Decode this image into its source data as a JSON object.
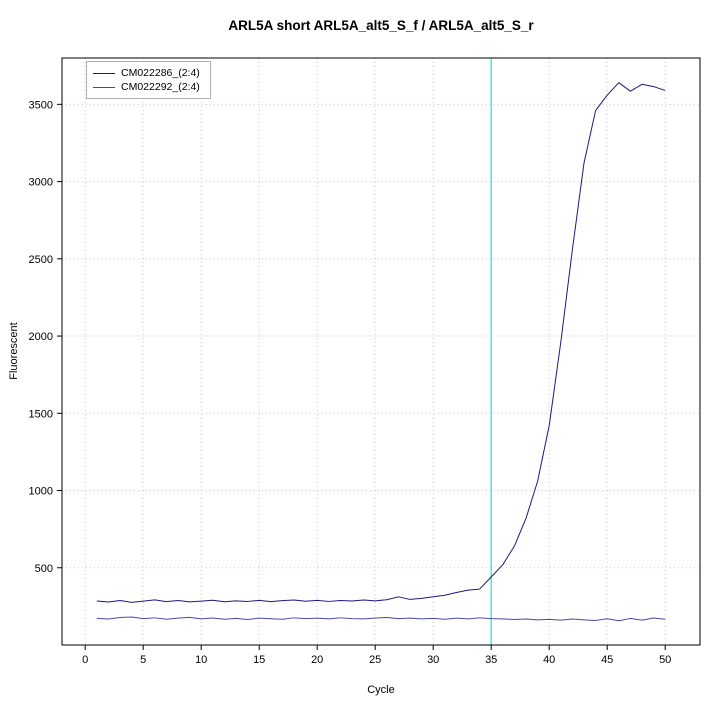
{
  "chart_data": {
    "type": "line",
    "title": "ARL5A short ARL5A_alt5_S_f / ARL5A_alt5_S_r",
    "xlabel": "Cycle",
    "ylabel": "Fluorescent",
    "xlim": [
      -2,
      53
    ],
    "ylim": [
      0,
      3800
    ],
    "xticks": [
      0,
      5,
      10,
      15,
      20,
      25,
      30,
      35,
      40,
      45,
      50
    ],
    "yticks": [
      500,
      1000,
      1500,
      2000,
      2500,
      3000,
      3500
    ],
    "grid": true,
    "grid_color": "#c8c8c8",
    "legend_position": "top-left",
    "threshold_line": {
      "x": 35,
      "color": "#4de3ec"
    },
    "x": [
      1,
      2,
      3,
      4,
      5,
      6,
      7,
      8,
      9,
      10,
      11,
      12,
      13,
      14,
      15,
      16,
      17,
      18,
      19,
      20,
      21,
      22,
      23,
      24,
      25,
      26,
      27,
      28,
      29,
      30,
      31,
      32,
      33,
      34,
      35,
      36,
      37,
      38,
      39,
      40,
      41,
      42,
      43,
      44,
      45,
      46,
      47,
      48,
      49,
      50
    ],
    "series": [
      {
        "name": "CM022286_(2:4)",
        "color": "#1a1a7e",
        "values": [
          285,
          278,
          288,
          276,
          284,
          292,
          281,
          288,
          279,
          284,
          290,
          280,
          286,
          282,
          289,
          281,
          287,
          291,
          283,
          289,
          282,
          288,
          285,
          291,
          286,
          293,
          312,
          295,
          302,
          312,
          322,
          340,
          355,
          362,
          440,
          520,
          640,
          820,
          1060,
          1420,
          1960,
          2560,
          3120,
          3460,
          3560,
          3640,
          3585,
          3630,
          3615,
          3590
        ]
      },
      {
        "name": "CM022292_(2:4)",
        "color": "#4848a8",
        "values": [
          172,
          168,
          178,
          181,
          171,
          176,
          167,
          174,
          179,
          169,
          175,
          167,
          172,
          165,
          174,
          170,
          167,
          176,
          171,
          174,
          169,
          176,
          171,
          169,
          175,
          178,
          171,
          174,
          169,
          172,
          167,
          174,
          169,
          176,
          171,
          169,
          165,
          168,
          163,
          166,
          161,
          168,
          163,
          159,
          170,
          157,
          172,
          161,
          175,
          167
        ]
      }
    ]
  }
}
